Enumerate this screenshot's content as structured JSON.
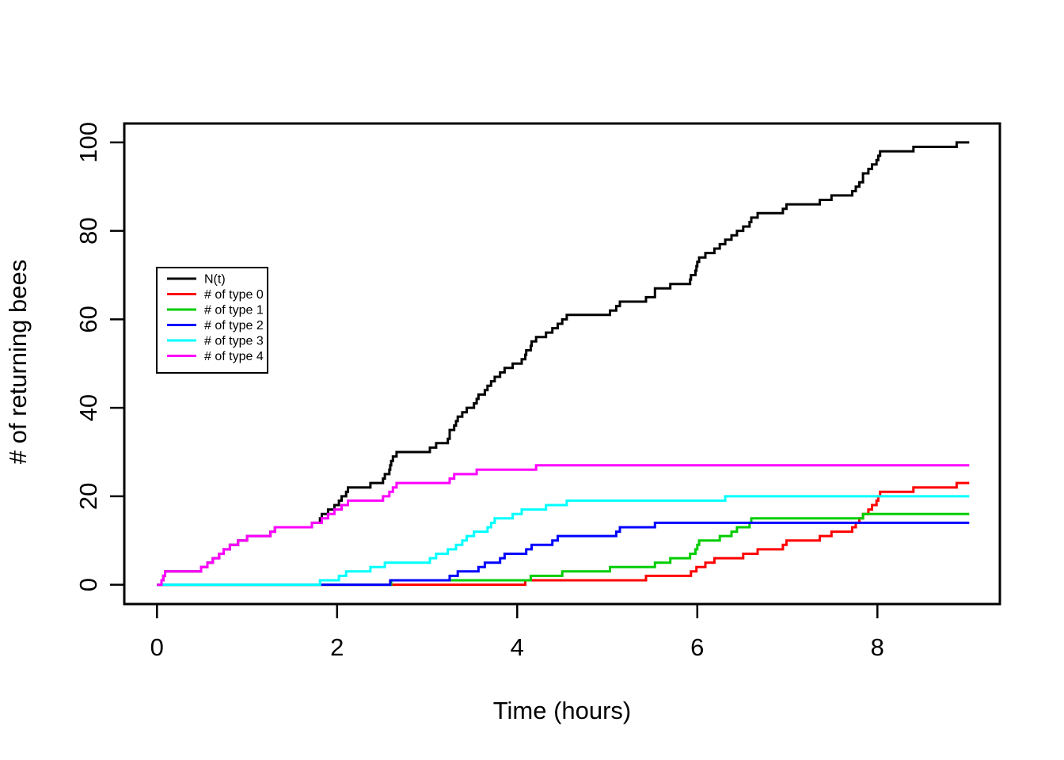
{
  "figure": {
    "background": "#ffffff",
    "kind": "R-style step plot of a counting process"
  },
  "chart_data": {
    "type": "line",
    "step": true,
    "title": "",
    "xlabel": "Time (hours)",
    "ylabel": "# of returning bees",
    "xlim": [
      0,
      9
    ],
    "ylim": [
      0,
      100
    ],
    "x_ticks": [
      "0",
      "2",
      "4",
      "6",
      "8"
    ],
    "x_tick_values": [
      0,
      2,
      4,
      6,
      8
    ],
    "y_ticks": [
      "0",
      "20",
      "40",
      "60",
      "80",
      "100"
    ],
    "y_tick_values": [
      0,
      20,
      40,
      60,
      80,
      100
    ],
    "grid": false,
    "legend_position": "left-middle-inside",
    "t_start": 0,
    "t_end": 9.02,
    "series": [
      {
        "name": "N(t)",
        "color": "#000000",
        "derived": "sum_of_all_types",
        "start_value": 0,
        "final_value": 100,
        "jump_times": null
      },
      {
        "name": "# of type 0",
        "color": "#FF0000",
        "start_value": 0,
        "final_value": 23,
        "jump_times": [
          4.09,
          5.43,
          5.93,
          5.99,
          6.09,
          6.19,
          6.51,
          6.67,
          6.95,
          6.99,
          7.36,
          7.49,
          7.72,
          7.76,
          7.8,
          7.84,
          7.9,
          7.94,
          7.99,
          8.01,
          8.03,
          8.4,
          8.88
        ]
      },
      {
        "name": "# of type 1",
        "color": "#00CD00",
        "start_value": 0,
        "final_value": 16,
        "jump_times": [
          2.6,
          4.15,
          4.5,
          5.03,
          5.53,
          5.7,
          5.92,
          5.98,
          6.0,
          6.02,
          6.25,
          6.38,
          6.44,
          6.58,
          6.6,
          7.84
        ]
      },
      {
        "name": "# of type 2",
        "color": "#0000FF",
        "start_value": 0,
        "final_value": 14,
        "jump_times": [
          2.59,
          3.25,
          3.34,
          3.57,
          3.64,
          3.81,
          3.86,
          4.1,
          4.16,
          4.39,
          4.45,
          5.1,
          5.14,
          5.53
        ]
      },
      {
        "name": "# of type 3",
        "color": "#00FFFF",
        "start_value": 0,
        "final_value": 20,
        "jump_times": [
          1.81,
          2.02,
          2.1,
          2.37,
          2.53,
          3.03,
          3.1,
          3.23,
          3.32,
          3.39,
          3.44,
          3.52,
          3.67,
          3.71,
          3.75,
          3.95,
          4.05,
          4.32,
          4.55,
          6.31
        ]
      },
      {
        "name": "# of type 4",
        "color": "#FF00FF",
        "start_value": 0,
        "final_value": 27,
        "jump_times": [
          0.05,
          0.07,
          0.09,
          0.49,
          0.56,
          0.62,
          0.69,
          0.74,
          0.81,
          0.9,
          1.0,
          1.26,
          1.31,
          1.72,
          1.83,
          1.9,
          1.97,
          2.05,
          2.12,
          2.51,
          2.58,
          2.62,
          2.66,
          3.25,
          3.3,
          3.55,
          4.21
        ]
      }
    ]
  }
}
